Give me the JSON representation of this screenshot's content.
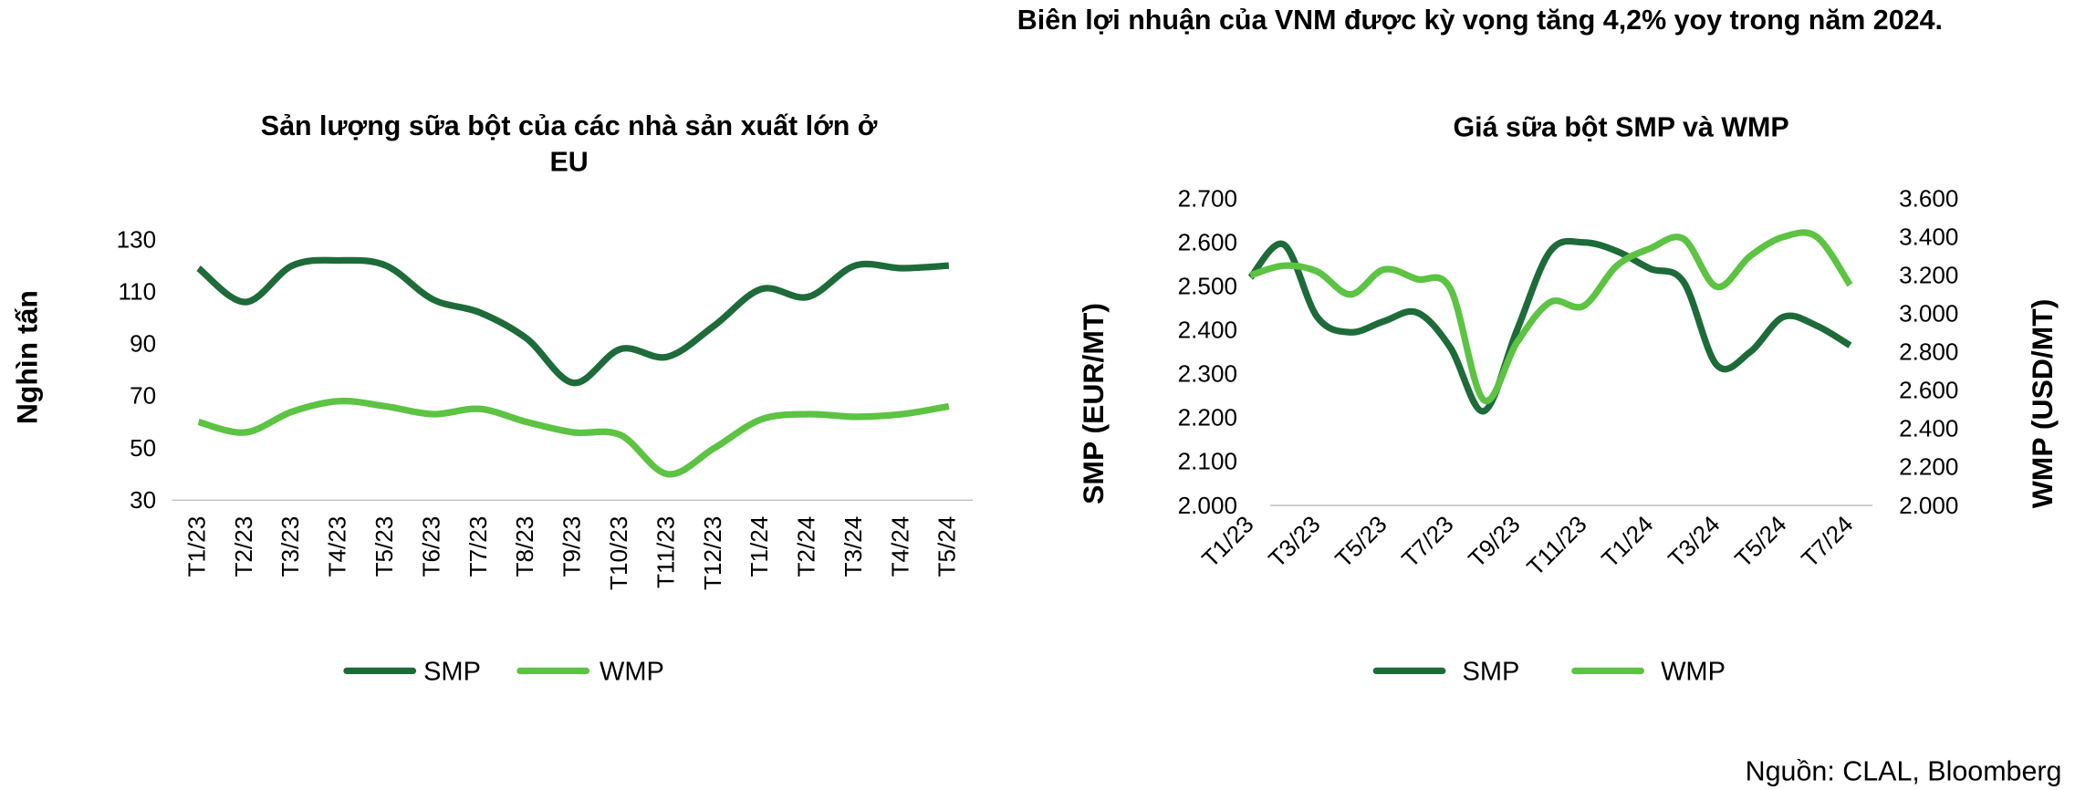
{
  "title": "Biên lợi nhuận của VNM được kỳ vọng tăng 4,2% yoy trong năm 2024.",
  "source": "Nguồn: CLAL, Bloomberg",
  "chart_data": [
    {
      "type": "line",
      "title": "Sản lượng sữa bột của các nhà sản xuất lớn ở EU",
      "y_label": "Nghìn tấn",
      "categories": [
        "T1/23",
        "T2/23",
        "T3/23",
        "T4/23",
        "T5/23",
        "T6/23",
        "T7/23",
        "T8/23",
        "T9/23",
        "T10/23",
        "T11/23",
        "T12/23",
        "T1/24",
        "T2/24",
        "T3/24",
        "T4/24",
        "T5/24"
      ],
      "series": [
        {
          "name": "SMP",
          "color": "#1e6b3a",
          "values": [
            119,
            106,
            120,
            122,
            120,
            107,
            102,
            92,
            75,
            88,
            85,
            97,
            111,
            108,
            120,
            119,
            120
          ]
        },
        {
          "name": "WMP",
          "color": "#5cc343",
          "values": [
            60,
            56,
            64,
            68,
            66,
            63,
            65,
            60,
            56,
            55,
            40,
            50,
            61,
            63,
            62,
            63,
            66
          ]
        }
      ],
      "ylim": [
        30,
        130
      ],
      "yticks": [
        30,
        50,
        70,
        90,
        110,
        130
      ],
      "legend": "bottom"
    },
    {
      "type": "line",
      "title": "Giá sữa bột SMP và WMP",
      "y_label": "SMP (EUR/MT)",
      "y2_label": "WMP (USD/MT)",
      "categories": [
        "T1/23",
        null,
        "T3/23",
        null,
        "T5/23",
        null,
        "T7/23",
        null,
        "T9/23",
        null,
        "T11/23",
        null,
        "T1/24",
        null,
        "T3/24",
        null,
        "T5/24",
        null,
        "T7/24"
      ],
      "series": [
        {
          "name": "SMP",
          "color": "#1e6b3a",
          "values": [
            2520,
            2595,
            2430,
            2395,
            2420,
            2440,
            2360,
            2215,
            2400,
            2580,
            2600,
            2580,
            2540,
            2510,
            2320,
            2350,
            2430,
            2410,
            2365
          ]
        },
        {
          "name": "WMP",
          "color": "#5cc343",
          "axis": "y2",
          "values": [
            3200,
            3250,
            3220,
            3100,
            3230,
            3180,
            3130,
            2550,
            2850,
            3060,
            3040,
            3250,
            3340,
            3390,
            3140,
            3300,
            3400,
            3400,
            3150
          ]
        }
      ],
      "ylim": [
        2000,
        2700
      ],
      "yticks": [
        {
          "value": 2000,
          "label": "2.000"
        },
        {
          "value": 2100,
          "label": "2.100"
        },
        {
          "value": 2200,
          "label": "2.200"
        },
        {
          "value": 2300,
          "label": "2.300"
        },
        {
          "value": 2400,
          "label": "2.400"
        },
        {
          "value": 2500,
          "label": "2.500"
        },
        {
          "value": 2600,
          "label": "2.600"
        },
        {
          "value": 2700,
          "label": "2.700"
        }
      ],
      "y2lim": [
        2000,
        3600
      ],
      "y2ticks": [
        {
          "value": 2000,
          "label": "2.000"
        },
        {
          "value": 2200,
          "label": "2.200"
        },
        {
          "value": 2400,
          "label": "2.400"
        },
        {
          "value": 2600,
          "label": "2.600"
        },
        {
          "value": 2800,
          "label": "2.800"
        },
        {
          "value": 3000,
          "label": "3.000"
        },
        {
          "value": 3200,
          "label": "3.200"
        },
        {
          "value": 3400,
          "label": "3.400"
        },
        {
          "value": 3600,
          "label": "3.600"
        }
      ],
      "legend": "bottom"
    }
  ]
}
